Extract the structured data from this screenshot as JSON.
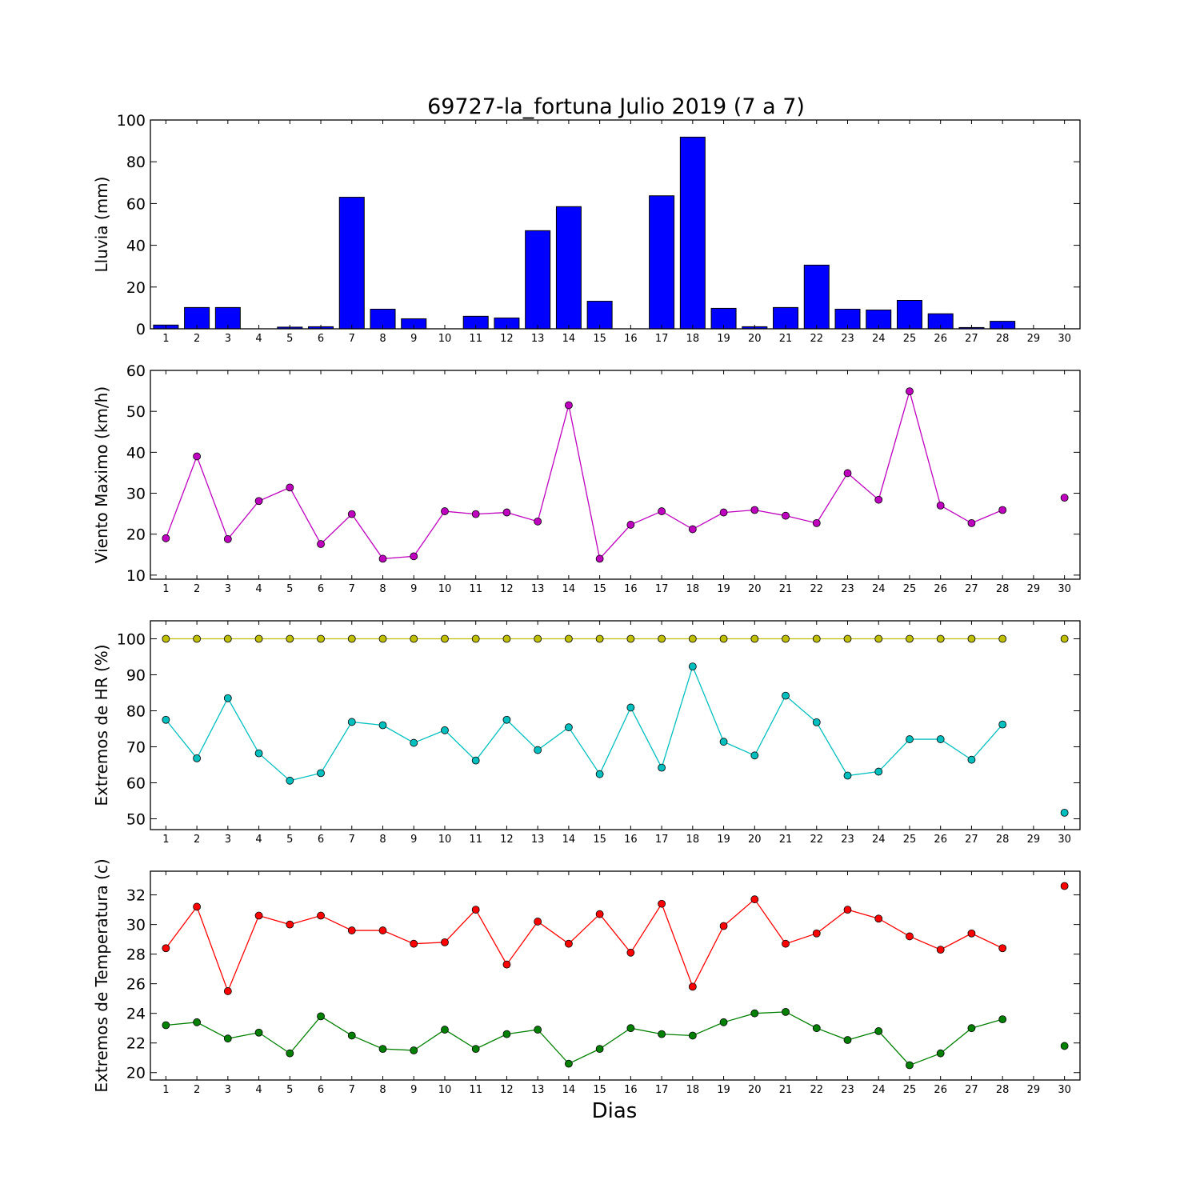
{
  "title": "69727-la_fortuna Julio 2019  (7 a 7)",
  "xlabel": "Dias",
  "colors": {
    "rain": "#0000ff",
    "wind": "#bf00bf",
    "hr_max": "#bfbf00",
    "hr_min": "#00bfbf",
    "temp_max": "#ff0000",
    "temp_min": "#008000"
  },
  "chart_data": [
    {
      "type": "bar",
      "ylabel": "Lluvia (mm)",
      "xlabel": "",
      "ylim": [
        0,
        100
      ],
      "yticks": [
        0,
        20,
        40,
        60,
        80,
        100
      ],
      "categories": [
        "1",
        "2",
        "3",
        "4",
        "5",
        "6",
        "7",
        "8",
        "9",
        "10",
        "11",
        "12",
        "13",
        "14",
        "15",
        "16",
        "17",
        "18",
        "19",
        "20",
        "21",
        "22",
        "23",
        "24",
        "25",
        "26",
        "27",
        "28",
        "29",
        "30"
      ],
      "series": [
        {
          "values": [
            1.8,
            10.2,
            10.2,
            0,
            0.8,
            1.0,
            63.0,
            9.4,
            4.8,
            0,
            6.0,
            5.2,
            47.0,
            58.5,
            13.2,
            0,
            63.7,
            91.8,
            9.8,
            1.0,
            10.2,
            30.5,
            9.4,
            9.0,
            13.6,
            7.2,
            0.6,
            3.6,
            null,
            null
          ]
        }
      ]
    },
    {
      "type": "line",
      "ylabel": "Viento Maximo (km/h)",
      "xlabel": "",
      "ylim": [
        9,
        60
      ],
      "yticks": [
        10,
        20,
        30,
        40,
        50,
        60
      ],
      "x": [
        1,
        2,
        3,
        4,
        5,
        6,
        7,
        8,
        9,
        10,
        11,
        12,
        13,
        14,
        15,
        16,
        17,
        18,
        19,
        20,
        21,
        22,
        23,
        24,
        25,
        26,
        27,
        28,
        29,
        30
      ],
      "series": [
        {
          "values": [
            19.0,
            39.0,
            18.8,
            28.1,
            31.4,
            17.6,
            24.9,
            14.0,
            14.6,
            25.6,
            24.9,
            25.3,
            23.1,
            51.5,
            14.0,
            22.3,
            25.6,
            21.2,
            25.3,
            25.9,
            24.5,
            22.7,
            34.9,
            28.4,
            54.9,
            27.0,
            22.7,
            25.9,
            null,
            28.9
          ]
        }
      ]
    },
    {
      "type": "line",
      "ylabel": "Extremos de HR (%)",
      "xlabel": "",
      "ylim": [
        47,
        105
      ],
      "yticks": [
        50,
        60,
        70,
        80,
        90,
        100
      ],
      "x": [
        1,
        2,
        3,
        4,
        5,
        6,
        7,
        8,
        9,
        10,
        11,
        12,
        13,
        14,
        15,
        16,
        17,
        18,
        19,
        20,
        21,
        22,
        23,
        24,
        25,
        26,
        27,
        28,
        29,
        30
      ],
      "series": [
        {
          "values": [
            100,
            100,
            100,
            100,
            100,
            100,
            100,
            100,
            100,
            100,
            100,
            100,
            100,
            100,
            100,
            100,
            100,
            100,
            100,
            100,
            100,
            100,
            100,
            100,
            100,
            100,
            100,
            100,
            null,
            100
          ]
        },
        {
          "values": [
            77.5,
            66.8,
            83.5,
            68.2,
            60.6,
            62.7,
            76.9,
            76.0,
            71.1,
            74.6,
            66.2,
            77.5,
            69.1,
            75.4,
            62.4,
            80.9,
            64.2,
            92.3,
            71.4,
            67.6,
            84.2,
            76.8,
            62.0,
            63.1,
            72.1,
            72.1,
            66.4,
            76.2,
            null,
            51.7
          ]
        }
      ]
    },
    {
      "type": "line",
      "ylabel": "Extremos de Temperatura (c)",
      "xlabel": "Dias",
      "ylim": [
        19.5,
        33.6
      ],
      "yticks": [
        20,
        22,
        24,
        26,
        28,
        30,
        32
      ],
      "x": [
        1,
        2,
        3,
        4,
        5,
        6,
        7,
        8,
        9,
        10,
        11,
        12,
        13,
        14,
        15,
        16,
        17,
        18,
        19,
        20,
        21,
        22,
        23,
        24,
        25,
        26,
        27,
        28,
        29,
        30
      ],
      "series": [
        {
          "values": [
            28.4,
            31.2,
            25.5,
            30.6,
            30.0,
            30.6,
            29.6,
            29.6,
            28.7,
            28.8,
            31.0,
            27.3,
            30.2,
            28.7,
            30.7,
            28.1,
            31.4,
            25.8,
            29.9,
            31.7,
            28.7,
            29.4,
            31.0,
            30.4,
            29.2,
            28.3,
            29.4,
            28.4,
            null,
            32.6
          ]
        },
        {
          "values": [
            23.2,
            23.4,
            22.3,
            22.7,
            21.3,
            23.8,
            22.5,
            21.6,
            21.5,
            22.9,
            21.6,
            22.6,
            22.9,
            20.6,
            21.6,
            23.0,
            22.6,
            22.5,
            23.4,
            24.0,
            24.1,
            23.0,
            22.2,
            22.8,
            20.5,
            21.3,
            23.0,
            23.6,
            null,
            21.8
          ]
        }
      ]
    }
  ]
}
